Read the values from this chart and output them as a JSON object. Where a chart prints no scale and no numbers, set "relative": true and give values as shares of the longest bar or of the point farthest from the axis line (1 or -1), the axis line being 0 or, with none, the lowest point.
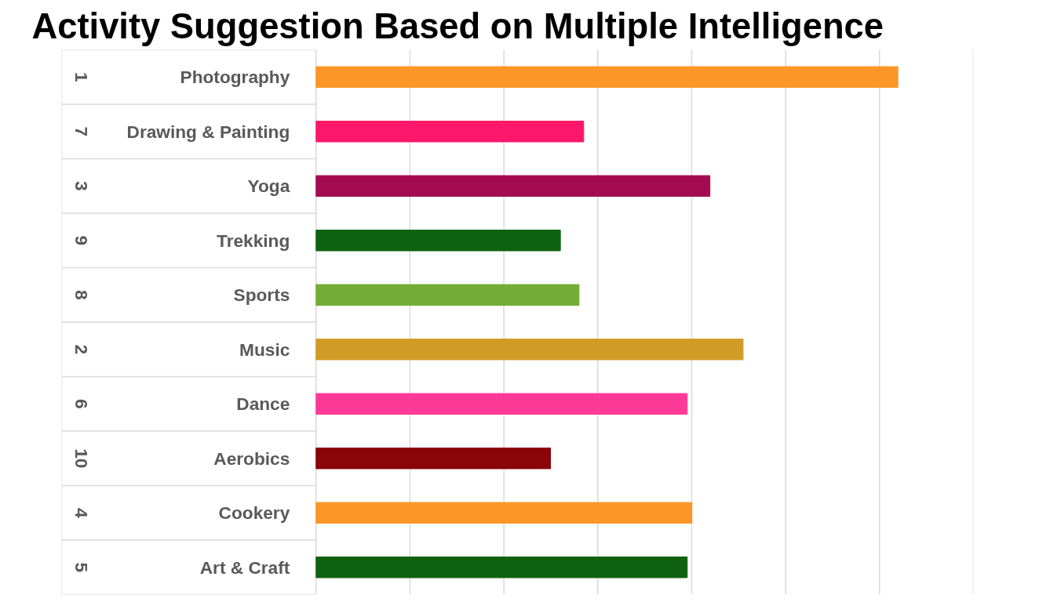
{
  "chart_data": {
    "type": "bar",
    "orientation": "horizontal",
    "relative": true,
    "title": "Activity Suggestion Based on Multiple Intelligence",
    "categories": [
      "Photography",
      "Drawing & Painting",
      "Yoga",
      "Trekking",
      "Sports",
      "Music",
      "Dance",
      "Aerobics",
      "Cookery",
      "Art & Craft"
    ],
    "annotations": [
      "1",
      "7",
      "3",
      "9",
      "8",
      "2",
      "6",
      "10",
      "4",
      "5"
    ],
    "values": [
      1,
      0.46,
      0.677,
      0.42,
      0.452,
      0.734,
      0.638,
      0.403,
      0.646,
      0.638
    ],
    "colors": [
      "#fb9627",
      "#fb1769",
      "#a50b52",
      "#0f620f",
      "#73ad37",
      "#d09c26",
      "#fd3a98",
      "#890509",
      "#fb9627",
      "#0f620f"
    ],
    "grid": "x"
  }
}
